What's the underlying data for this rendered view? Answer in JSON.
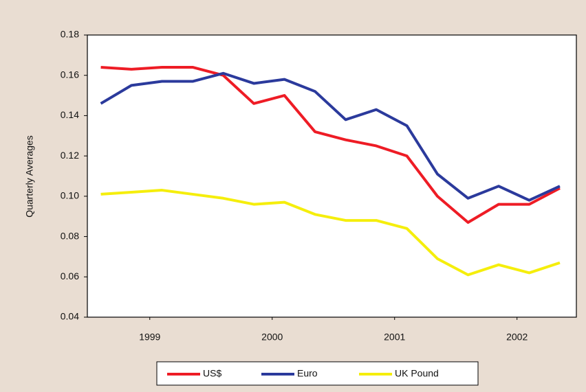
{
  "chart_data": {
    "type": "line",
    "y_label": "Quarterly Averages",
    "x": [
      1999,
      1999.25,
      1999.5,
      1999.75,
      2000,
      2000.25,
      2000.5,
      2000.75,
      2001,
      2001.25,
      2001.5,
      2001.75,
      2002,
      2002.25,
      2002.5,
      2002.75
    ],
    "xlim": [
      1998.89,
      2002.885
    ],
    "xticks": [
      {
        "value": 1999.4,
        "label": "1999"
      },
      {
        "value": 2000.4,
        "label": "2000"
      },
      {
        "value": 2001.4,
        "label": "2001"
      },
      {
        "value": 2002.4,
        "label": "2002"
      }
    ],
    "ylim": [
      0.04,
      0.18
    ],
    "yticks": [
      0.04,
      0.06,
      0.08,
      {
        "value": 0.1,
        "label": "0.10"
      },
      0.12,
      0.14,
      0.16,
      0.18
    ],
    "series": [
      {
        "name": "US$",
        "color": "#ee1c25",
        "values": [
          0.164,
          0.163,
          0.164,
          0.164,
          0.16,
          0.146,
          0.15,
          0.132,
          0.128,
          0.125,
          0.12,
          0.1,
          0.087,
          0.096,
          0.096,
          0.104
        ]
      },
      {
        "name": "Euro",
        "color": "#2b3a9c",
        "values": [
          0.146,
          0.155,
          0.157,
          0.157,
          0.161,
          0.156,
          0.158,
          0.152,
          0.138,
          0.143,
          0.135,
          0.111,
          0.099,
          0.105,
          0.098,
          0.105
        ]
      },
      {
        "name": "UK Pound",
        "color": "#f5ee0c",
        "values": [
          0.101,
          0.102,
          0.103,
          0.101,
          0.099,
          0.096,
          0.097,
          0.091,
          0.088,
          0.088,
          0.084,
          0.069,
          0.061,
          0.066,
          0.062,
          0.067
        ]
      }
    ]
  }
}
